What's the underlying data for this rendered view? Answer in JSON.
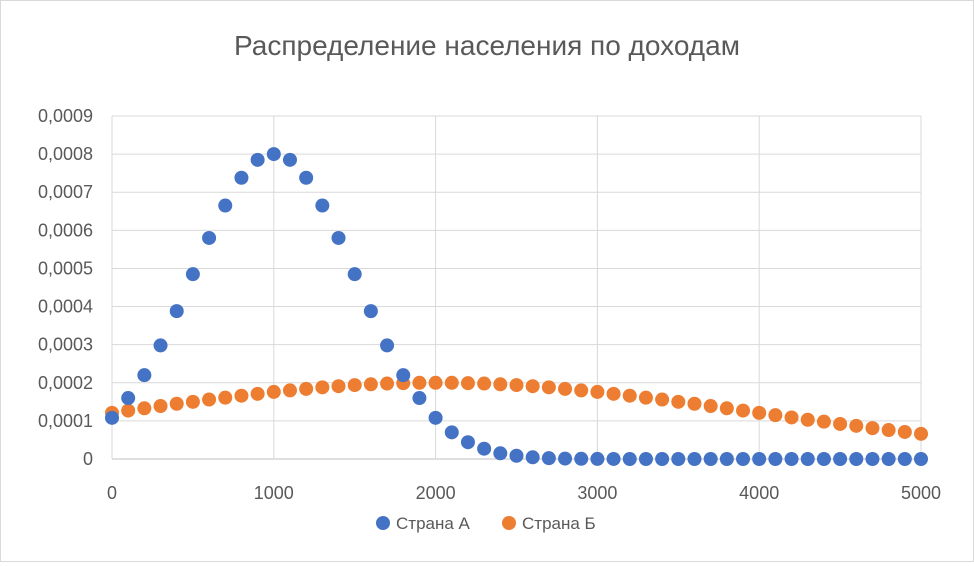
{
  "chart_data": {
    "type": "scatter",
    "title": "Распределение населения по доходам",
    "xlabel": "",
    "ylabel": "",
    "xlim": [
      0,
      5000
    ],
    "ylim": [
      0,
      0.0009
    ],
    "x_ticks": [
      "0",
      "1000",
      "2000",
      "3000",
      "4000",
      "5000"
    ],
    "y_ticks": [
      "0",
      "0,0001",
      "0,0002",
      "0,0003",
      "0,0004",
      "0,0005",
      "0,0006",
      "0,0007",
      "0,0008",
      "0,0009"
    ],
    "grid": true,
    "legend_position": "bottom",
    "x": [
      0,
      100,
      200,
      300,
      400,
      500,
      600,
      700,
      800,
      900,
      1000,
      1100,
      1200,
      1300,
      1400,
      1500,
      1600,
      1700,
      1800,
      1900,
      2000,
      2100,
      2200,
      2300,
      2400,
      2500,
      2600,
      2700,
      2800,
      2900,
      3000,
      3100,
      3200,
      3300,
      3400,
      3500,
      3600,
      3700,
      3800,
      3900,
      4000,
      4100,
      4200,
      4300,
      4400,
      4500,
      4600,
      4700,
      4800,
      4900,
      5000
    ],
    "series": [
      {
        "name": "Страна А",
        "color": "#4472c4",
        "values": [
          0.000108,
          0.00016,
          0.00022,
          0.000298,
          0.000388,
          0.000485,
          0.00058,
          0.000665,
          0.000738,
          0.000785,
          0.0008,
          0.000785,
          0.000738,
          0.000665,
          0.00058,
          0.000485,
          0.000388,
          0.000298,
          0.00022,
          0.00016,
          0.000108,
          7e-05,
          4.4e-05,
          2.7e-05,
          1.5e-05,
          8.5e-06,
          4.5e-06,
          2.2e-06,
          1.1e-06,
          5e-07,
          2e-07,
          1e-07,
          0,
          0,
          0,
          0,
          0,
          0,
          0,
          0,
          0,
          0,
          0,
          0,
          0,
          0,
          0,
          0,
          0,
          0,
          0
        ]
      },
      {
        "name": "Страна Б",
        "color": "#ed7d31",
        "values": [
          0.000121,
          0.000127,
          0.000133,
          0.000139,
          0.000145,
          0.00015,
          0.000156,
          0.000161,
          0.000166,
          0.000171,
          0.000176,
          0.00018,
          0.000184,
          0.000188,
          0.000191,
          0.000194,
          0.000196,
          0.000198,
          0.000199,
          0.0002,
          0.0002,
          0.0002,
          0.000199,
          0.000198,
          0.000196,
          0.000194,
          0.000191,
          0.000188,
          0.000184,
          0.00018,
          0.000176,
          0.000171,
          0.000166,
          0.000161,
          0.000156,
          0.00015,
          0.000145,
          0.000139,
          0.000133,
          0.000127,
          0.000121,
          0.000115,
          0.000109,
          0.000103,
          9.8e-05,
          9.2e-05,
          8.7e-05,
          8.1e-05,
          7.6e-05,
          7.1e-05,
          6.6e-05
        ]
      }
    ]
  }
}
